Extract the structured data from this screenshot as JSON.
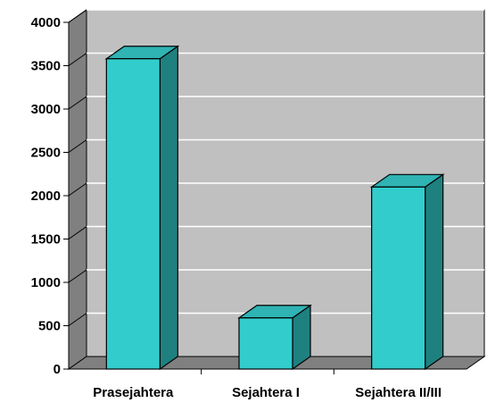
{
  "chart_data": {
    "type": "bar",
    "categories": [
      "Prasejahtera",
      "Sejahtera I",
      "Sejahtera II/III"
    ],
    "values": [
      3580,
      590,
      2100
    ],
    "ylim": [
      0,
      4000
    ],
    "yticks": [
      0,
      500,
      1000,
      1500,
      2000,
      2500,
      3000,
      3500,
      4000
    ],
    "grid": true,
    "legend": "none",
    "style": "3d-column",
    "colors": {
      "bar_front": "#33cccc",
      "bar_side": "#1f8080",
      "bar_top": "#2fb3b3",
      "back_wall": "#c0c0c0",
      "side_wall": "#808080",
      "floor": "#808080",
      "gridline": "#ffffff"
    }
  }
}
